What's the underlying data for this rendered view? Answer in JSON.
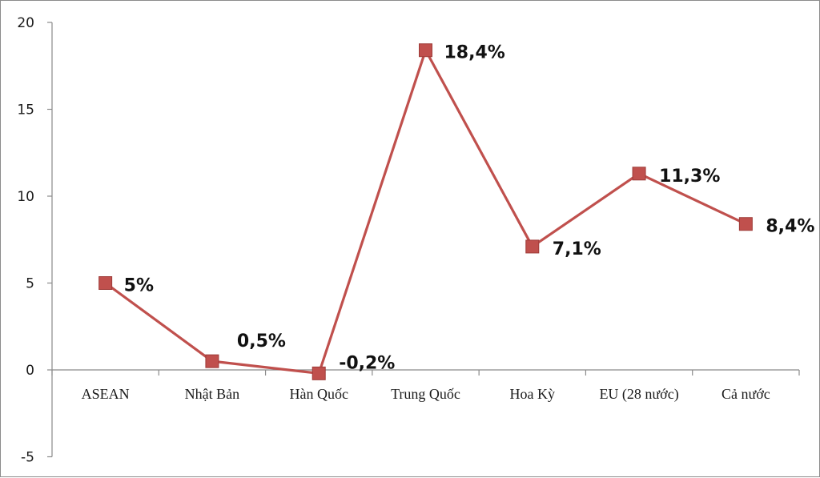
{
  "chart_data": {
    "type": "line",
    "categories": [
      "ASEAN",
      "Nhật Bản",
      "Hàn Quốc",
      "Trung Quốc",
      "Hoa Kỳ",
      "EU (28 nước)",
      "Cả nước"
    ],
    "series": [
      {
        "values": [
          5,
          0.5,
          -0.2,
          18.4,
          7.1,
          11.3,
          8.4
        ],
        "data_labels": [
          "5%",
          "0,5%",
          "-0,2%",
          "18,4%",
          "7,1%",
          "11,3%",
          "8,4%"
        ],
        "color": "#c0504d"
      }
    ],
    "ylim": [
      -5,
      20
    ],
    "yticks": [
      -5,
      0,
      5,
      10,
      15,
      20
    ],
    "ytick_labels": [
      "-5",
      "0",
      "5",
      "10",
      "15",
      "20"
    ],
    "title": "",
    "xlabel": "",
    "ylabel": "",
    "grid": false,
    "legend": "none"
  }
}
